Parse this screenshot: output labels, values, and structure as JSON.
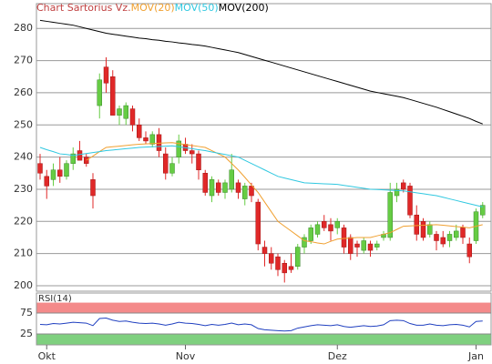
{
  "chart_data": [
    {
      "type": "candlestick",
      "title": "Chart Sartorius Vz.",
      "categories": [
        null,
        "Okt",
        null,
        null,
        null,
        null,
        null,
        null,
        null,
        null,
        null,
        null,
        null,
        null,
        null,
        null,
        null,
        null,
        null,
        null,
        null,
        null,
        "Nov",
        null,
        null,
        null,
        null,
        null,
        null,
        null,
        null,
        null,
        null,
        null,
        null,
        null,
        null,
        null,
        null,
        null,
        null,
        null,
        null,
        null,
        null,
        "Dez",
        null,
        null,
        null,
        null,
        null,
        null,
        null,
        null,
        null,
        null,
        null,
        null,
        null,
        null,
        null,
        null,
        null,
        null,
        null,
        null,
        "Jan",
        null
      ],
      "open": [
        238,
        234,
        233,
        236,
        234,
        238,
        242,
        240,
        233,
        256,
        268,
        265,
        253,
        252,
        255,
        250,
        246,
        244,
        247,
        241,
        235,
        240,
        244,
        242,
        241,
        235,
        228,
        232,
        229,
        230,
        232,
        227,
        231,
        226,
        212,
        210,
        209,
        207,
        206,
        206,
        212,
        214,
        216,
        220,
        219,
        218,
        218,
        215,
        213,
        211,
        213,
        212,
        215,
        215,
        228,
        232,
        231,
        222,
        220,
        216,
        216,
        215,
        214,
        215,
        218,
        213,
        214,
        222
      ],
      "high": [
        241,
        236,
        238,
        240,
        239,
        243,
        245,
        241,
        235,
        266,
        271,
        267,
        256,
        257,
        256,
        252,
        248,
        248,
        249,
        243,
        240,
        247,
        246,
        244,
        242,
        236,
        234,
        233,
        233,
        241,
        233,
        232,
        232,
        227,
        214,
        212,
        210,
        208,
        210,
        213,
        216,
        219,
        220,
        222,
        221,
        221,
        219,
        216,
        214,
        215,
        214,
        214,
        217,
        232,
        232,
        233,
        232,
        225,
        221,
        220,
        217,
        217,
        217,
        219,
        219,
        215,
        224,
        226
      ],
      "low": [
        233,
        227,
        231,
        232,
        233,
        236,
        239,
        237,
        224,
        252,
        260,
        253,
        250,
        250,
        248,
        245,
        244,
        243,
        240,
        233,
        234,
        238,
        241,
        238,
        233,
        228,
        226,
        228,
        227,
        229,
        227,
        225,
        226,
        211,
        206,
        205,
        203,
        201,
        204,
        205,
        210,
        213,
        215,
        217,
        214,
        216,
        210,
        208,
        209,
        210,
        209,
        211,
        214,
        214,
        226,
        229,
        221,
        214,
        214,
        215,
        211,
        212,
        212,
        214,
        213,
        207,
        213,
        221
      ],
      "close": [
        235,
        231,
        236,
        234,
        238,
        241,
        239,
        238,
        228,
        264,
        263,
        253,
        255,
        256,
        250,
        246,
        245,
        247,
        242,
        235,
        238,
        245,
        242,
        241,
        236,
        229,
        233,
        229,
        232,
        236,
        229,
        231,
        228,
        213,
        210,
        207,
        205,
        204,
        205,
        212,
        215,
        218,
        219,
        218,
        217,
        220,
        212,
        210,
        212,
        214,
        211,
        213,
        216,
        229,
        230,
        230,
        222,
        216,
        215,
        219,
        214,
        213,
        216,
        217,
        215,
        209,
        223,
        225
      ],
      "up_color": "#66cc44",
      "down_color": "#e02828",
      "series": [
        {
          "name": "MOV(20)",
          "color": "#f0a030",
          "values": [
            null,
            null,
            null,
            null,
            null,
            null,
            null,
            239,
            240.3,
            241.7,
            243,
            243.2,
            243.4,
            243.6,
            243.8,
            244,
            244.1,
            244.2,
            244.3,
            244.4,
            244.5,
            244.2,
            243.9,
            243.6,
            243.3,
            243,
            242,
            241,
            240,
            238,
            236,
            233.7,
            231.3,
            229,
            226,
            223,
            220,
            218.5,
            217,
            215.5,
            214,
            213.7,
            213.3,
            213,
            213.8,
            214.5,
            214.7,
            214.8,
            215,
            215,
            215,
            215.5,
            216,
            216.5,
            217.5,
            218.5,
            218.6,
            218.7,
            218.8,
            218.9,
            219,
            218.8,
            218.6,
            218.4,
            218.2,
            218,
            218.5,
            219
          ]
        },
        {
          "name": "MOV(50)",
          "color": "#30c8e0",
          "values": [
            243,
            242.3,
            241.7,
            241,
            240.8,
            240.5,
            240.8,
            241.1,
            241.4,
            241.7,
            242,
            242.2,
            242.4,
            242.6,
            242.8,
            243,
            243.1,
            243.2,
            243.3,
            243.4,
            243.5,
            243.2,
            242.9,
            242.6,
            242.3,
            242,
            241.6,
            241.2,
            240.8,
            240.4,
            240,
            239,
            238,
            237,
            236,
            235,
            234,
            233.5,
            233,
            232.5,
            232,
            231.9,
            231.8,
            231.7,
            231.6,
            231.5,
            231.2,
            230.9,
            230.6,
            230.3,
            230,
            229.9,
            229.8,
            229.7,
            229.6,
            229.5,
            229.2,
            228.9,
            228.6,
            228.3,
            228,
            227.5,
            227,
            226.5,
            226,
            225.5,
            225,
            224.5
          ]
        },
        {
          "name": "MOV(200)",
          "color": "#000000",
          "values": [
            282.5,
            282.2,
            281.9,
            281.6,
            281.3,
            281,
            280.5,
            280,
            279.5,
            279,
            278.5,
            278.2,
            277.9,
            277.6,
            277.3,
            277,
            276.8,
            276.5,
            276.3,
            276,
            275.8,
            275.5,
            275.3,
            275,
            274.8,
            274.5,
            274.1,
            273.7,
            273.3,
            272.9,
            272.5,
            271.9,
            271.3,
            270.7,
            270.1,
            269.5,
            268.9,
            268.3,
            267.7,
            267.1,
            266.5,
            265.9,
            265.3,
            264.7,
            264.1,
            263.5,
            262.9,
            262.3,
            261.7,
            261.1,
            260.5,
            260.1,
            259.7,
            259.3,
            258.9,
            258.5,
            257.9,
            257.3,
            256.7,
            256.1,
            255.5,
            254.8,
            254.1,
            253.4,
            252.7,
            252,
            251.1,
            250.3
          ]
        }
      ],
      "ylim": [
        198.3,
        287.7
      ],
      "yticks": [
        200,
        210,
        220,
        230,
        240,
        250,
        260,
        270,
        280
      ],
      "grid": true
    },
    {
      "type": "line",
      "title": "RSI(14)",
      "color": "#2040c0",
      "values": [
        48,
        47,
        50,
        49,
        51,
        53,
        52,
        51,
        45,
        62,
        63,
        58,
        55,
        56,
        53,
        51,
        50,
        51,
        49,
        46,
        49,
        53,
        51,
        50,
        48,
        45,
        48,
        46,
        48,
        51,
        47,
        49,
        47,
        38,
        35,
        34,
        33,
        32,
        33,
        39,
        42,
        45,
        47,
        46,
        45,
        47,
        43,
        41,
        43,
        45,
        43,
        44,
        47,
        57,
        58,
        57,
        50,
        46,
        46,
        49,
        46,
        45,
        47,
        48,
        46,
        42,
        55,
        56
      ],
      "ylim": [
        0,
        123
      ],
      "yticks": [
        25,
        75
      ],
      "bands": [
        {
          "from": 75,
          "to": 100,
          "color": "#f48a8a"
        },
        {
          "from": 0,
          "to": 25,
          "color": "#7fd07f"
        }
      ]
    }
  ]
}
